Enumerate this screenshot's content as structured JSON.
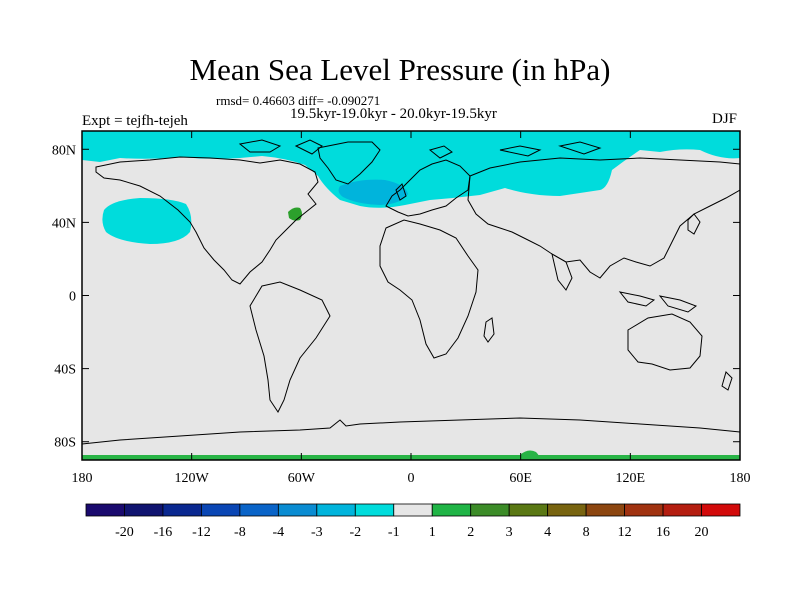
{
  "title": "Mean Sea Level Pressure (in hPa)",
  "stats": "rmsd= 0.46603 diff= -0.090271",
  "period": "19.5kyr-19.0kyr - 20.0kyr-19.5kyr",
  "experiment": "Expt = tejfh-tejeh",
  "season": "DJF",
  "map": {
    "projection": "cylindrical equidistant",
    "lon_range": [
      -180,
      180
    ],
    "lat_range": [
      -90,
      90
    ],
    "background_color": "#e6e6e6",
    "lat_ticks": [
      {
        "value": 80,
        "label": "80N"
      },
      {
        "value": 40,
        "label": "40N"
      },
      {
        "value": 0,
        "label": "0"
      },
      {
        "value": -40,
        "label": "40S"
      },
      {
        "value": -80,
        "label": "80S"
      }
    ],
    "lon_ticks": [
      {
        "value": -180,
        "label": "180"
      },
      {
        "value": -120,
        "label": "120W"
      },
      {
        "value": -60,
        "label": "60W"
      },
      {
        "value": 0,
        "label": "0"
      },
      {
        "value": 60,
        "label": "60E"
      },
      {
        "value": 120,
        "label": "120E"
      },
      {
        "value": 180,
        "label": "180"
      }
    ]
  },
  "anomaly_regions": [
    {
      "name": "arctic-negative-anomaly",
      "level": "-2 to -1",
      "color": "#00dcdc"
    },
    {
      "name": "north-pacific-negative-anomaly",
      "level": "-2 to -1",
      "color": "#00dcdc"
    },
    {
      "name": "north-atlantic-negative-anomaly",
      "level": "-3 to -2",
      "color": "#00b4dc"
    },
    {
      "name": "nw-atlantic-positive-anomaly",
      "level": "1 to 3",
      "color": "#2ca02c"
    },
    {
      "name": "antarctic-positive-anomaly",
      "level": "1 to 2",
      "color": "#28b446"
    }
  ],
  "colorbar": {
    "colors": [
      "#1a0a6e",
      "#101470",
      "#0a2890",
      "#0a46b4",
      "#0a64c8",
      "#0a8cd2",
      "#00b4dc",
      "#00dcdc",
      "#e6e6e6",
      "#20b446",
      "#3c8c28",
      "#5a7814",
      "#786410",
      "#8c4610",
      "#a03210",
      "#b41e10",
      "#d20a0a"
    ],
    "labels": [
      "-20",
      "-16",
      "-12",
      "-8",
      "-4",
      "-3",
      "-2",
      "-1",
      "1",
      "2",
      "3",
      "4",
      "8",
      "12",
      "16",
      "20"
    ]
  }
}
